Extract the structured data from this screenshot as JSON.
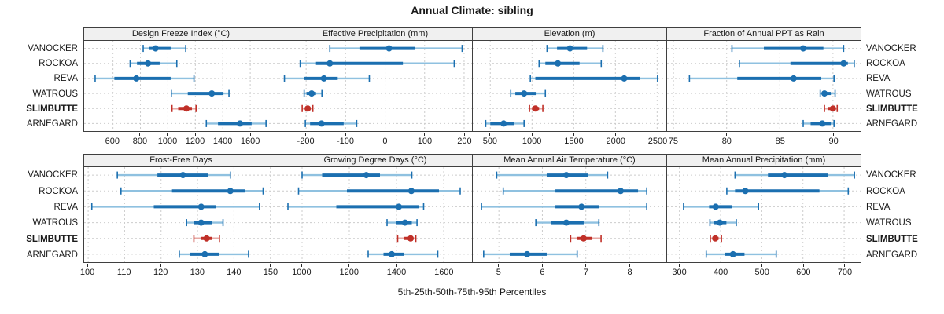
{
  "title": "Annual Climate: sibling",
  "caption": "5th-25th-50th-75th-95th Percentiles",
  "colors": {
    "series": "#1b6fb0",
    "series_light": "#8fc1e0",
    "highlight": "#c03028",
    "highlight_light": "#e7a9a4",
    "grid": "#cccccc",
    "border": "#3f3f3f",
    "strip_bg": "#f0f0f0",
    "background": "#ffffff"
  },
  "chart_data": {
    "type": "percentile-dotplot",
    "layout": "2 rows x 4 columns of panels, shared station rows, free x scales",
    "percentile_levels": [
      5,
      25,
      50,
      75,
      95
    ],
    "stations": [
      {
        "name": "VANOCKER",
        "bold": false
      },
      {
        "name": "ROCKOA",
        "bold": false
      },
      {
        "name": "REVA",
        "bold": false
      },
      {
        "name": "WATROUS",
        "bold": false
      },
      {
        "name": "SLIMBUTTE",
        "bold": true
      },
      {
        "name": "ARNEGARD",
        "bold": false
      }
    ],
    "highlight_station": "SLIMBUTTE",
    "panels": [
      {
        "title": "Design Freeze Index (°C)",
        "xlim": [
          390,
          1800
        ],
        "ticks": [
          600,
          800,
          1000,
          1200,
          1400,
          1600
        ],
        "series": [
          {
            "station": "VANOCKER",
            "values": [
              820,
              865,
              910,
              1020,
              1130
            ]
          },
          {
            "station": "ROCKOA",
            "values": [
              725,
              775,
              855,
              940,
              1065
            ]
          },
          {
            "station": "REVA",
            "values": [
              470,
              610,
              770,
              1020,
              1190
            ]
          },
          {
            "station": "WATROUS",
            "values": [
              1025,
              1145,
              1320,
              1405,
              1445
            ]
          },
          {
            "station": "SLIMBUTTE",
            "values": [
              1030,
              1075,
              1135,
              1175,
              1205
            ]
          },
          {
            "station": "ARNEGARD",
            "values": [
              1280,
              1365,
              1525,
              1610,
              1715
            ]
          }
        ]
      },
      {
        "title": "Effective Precipitation (mm)",
        "xlim": [
          -270,
          220
        ],
        "ticks": [
          -200,
          -100,
          0,
          100,
          200
        ],
        "series": [
          {
            "station": "VANOCKER",
            "values": [
              -140,
              -65,
              10,
              75,
              195
            ]
          },
          {
            "station": "ROCKOA",
            "values": [
              -215,
              -175,
              -140,
              45,
              175
            ]
          },
          {
            "station": "REVA",
            "values": [
              -255,
              -205,
              -155,
              -120,
              -40
            ]
          },
          {
            "station": "WATROUS",
            "values": [
              -205,
              -199,
              -186,
              -175,
              -160
            ]
          },
          {
            "station": "SLIMBUTTE",
            "values": [
              -210,
              -203,
              -196,
              -189,
              -183
            ]
          },
          {
            "station": "ARNEGARD",
            "values": [
              -202,
              -190,
              -161,
              -105,
              -72
            ]
          }
        ]
      },
      {
        "title": "Elevation (m)",
        "xlim": [
          290,
          2610
        ],
        "ticks": [
          500,
          1000,
          1500,
          2000,
          2500
        ],
        "series": [
          {
            "station": "VANOCKER",
            "values": [
              1180,
              1300,
              1455,
              1660,
              1850
            ]
          },
          {
            "station": "ROCKOA",
            "values": [
              1085,
              1160,
              1310,
              1570,
              1830
            ]
          },
          {
            "station": "REVA",
            "values": [
              980,
              1040,
              2105,
              2290,
              2505
            ]
          },
          {
            "station": "WATROUS",
            "values": [
              745,
              800,
              905,
              1045,
              1160
            ]
          },
          {
            "station": "SLIMBUTTE",
            "values": [
              970,
              1000,
              1040,
              1085,
              1130
            ]
          },
          {
            "station": "ARNEGARD",
            "values": [
              445,
              500,
              660,
              785,
              905
            ]
          }
        ]
      },
      {
        "title": "Fraction of Annual PPT as Rain",
        "xlim": [
          74.4,
          92.6
        ],
        "ticks": [
          75,
          80,
          85,
          90
        ],
        "series": [
          {
            "station": "VANOCKER",
            "values": [
              80.5,
              83.5,
              87.2,
              89.1,
              91.0
            ]
          },
          {
            "station": "ROCKOA",
            "values": [
              81.2,
              86.0,
              91.0,
              91.4,
              92.0
            ]
          },
          {
            "station": "REVA",
            "values": [
              76.5,
              81.0,
              86.3,
              88.9,
              90.1
            ]
          },
          {
            "station": "WATROUS",
            "values": [
              88.8,
              89.0,
              89.2,
              89.8,
              90.2
            ]
          },
          {
            "station": "SLIMBUTTE",
            "values": [
              89.2,
              89.5,
              90.0,
              90.2,
              90.4
            ]
          },
          {
            "station": "ARNEGARD",
            "values": [
              87.2,
              87.9,
              89.0,
              89.8,
              90.1
            ]
          }
        ]
      },
      {
        "title": "Frost-Free Days",
        "xlim": [
          98.9,
          152
        ],
        "ticks": [
          100,
          110,
          120,
          130,
          140,
          150
        ],
        "series": [
          {
            "station": "VANOCKER",
            "values": [
              108,
              119,
              126,
              133,
              139
            ]
          },
          {
            "station": "ROCKOA",
            "values": [
              109,
              123,
              139,
              143,
              148
            ]
          },
          {
            "station": "REVA",
            "values": [
              101,
              118,
              131,
              135,
              147
            ]
          },
          {
            "station": "WATROUS",
            "values": [
              127,
              129,
              131,
              134,
              137
            ]
          },
          {
            "station": "SLIMBUTTE",
            "values": [
              129,
              131,
              132.5,
              134,
              136
            ]
          },
          {
            "station": "ARNEGARD",
            "values": [
              125,
              128,
              132,
              136,
              144
            ]
          }
        ]
      },
      {
        "title": "Growing Degree Days (°C)",
        "xlim": [
          900,
          1720
        ],
        "ticks": [
          1000,
          1200,
          1400,
          1600
        ],
        "series": [
          {
            "station": "VANOCKER",
            "values": [
              1000,
              1085,
              1272,
              1330,
              1465
            ]
          },
          {
            "station": "ROCKOA",
            "values": [
              985,
              1190,
              1463,
              1580,
              1670
            ]
          },
          {
            "station": "REVA",
            "values": [
              940,
              1145,
              1410,
              1495,
              1515
            ]
          },
          {
            "station": "WATROUS",
            "values": [
              1360,
              1400,
              1436,
              1465,
              1487
            ]
          },
          {
            "station": "SLIMBUTTE",
            "values": [
              1405,
              1430,
              1460,
              1472,
              1482
            ]
          },
          {
            "station": "ARNEGARD",
            "values": [
              1280,
              1345,
              1380,
              1430,
              1575
            ]
          }
        ]
      },
      {
        "title": "Mean Annual Air Temperature (°C)",
        "xlim": [
          4.4,
          8.85
        ],
        "ticks": [
          5,
          6,
          7,
          8
        ],
        "series": [
          {
            "station": "VANOCKER",
            "values": [
              4.95,
              6.1,
              6.55,
              7.05,
              7.5
            ]
          },
          {
            "station": "ROCKOA",
            "values": [
              5.1,
              6.3,
              7.8,
              8.2,
              8.4
            ]
          },
          {
            "station": "REVA",
            "values": [
              4.6,
              6.3,
              6.9,
              7.3,
              8.4
            ]
          },
          {
            "station": "WATROUS",
            "values": [
              5.85,
              6.2,
              6.55,
              6.95,
              7.3
            ]
          },
          {
            "station": "SLIMBUTTE",
            "values": [
              6.65,
              6.8,
              6.95,
              7.15,
              7.35
            ]
          },
          {
            "station": "ARNEGARD",
            "values": [
              4.65,
              5.25,
              5.65,
              6.1,
              6.8
            ]
          }
        ]
      },
      {
        "title": "Mean Annual Precipitation (mm)",
        "xlim": [
          270,
          740
        ],
        "ticks": [
          300,
          400,
          500,
          600,
          700
        ],
        "series": [
          {
            "station": "VANOCKER",
            "values": [
              435,
              515,
              555,
              660,
              725
            ]
          },
          {
            "station": "ROCKOA",
            "values": [
              415,
              435,
              460,
              640,
              710
            ]
          },
          {
            "station": "REVA",
            "values": [
              310,
              372,
              388,
              428,
              492
            ]
          },
          {
            "station": "WATROUS",
            "values": [
              374,
              384,
              398,
              414,
              438
            ]
          },
          {
            "station": "SLIMBUTTE",
            "values": [
              375,
              380,
              387,
              395,
              402
            ]
          },
          {
            "station": "ARNEGARD",
            "values": [
              365,
              410,
              430,
              458,
              535
            ]
          }
        ]
      }
    ]
  }
}
